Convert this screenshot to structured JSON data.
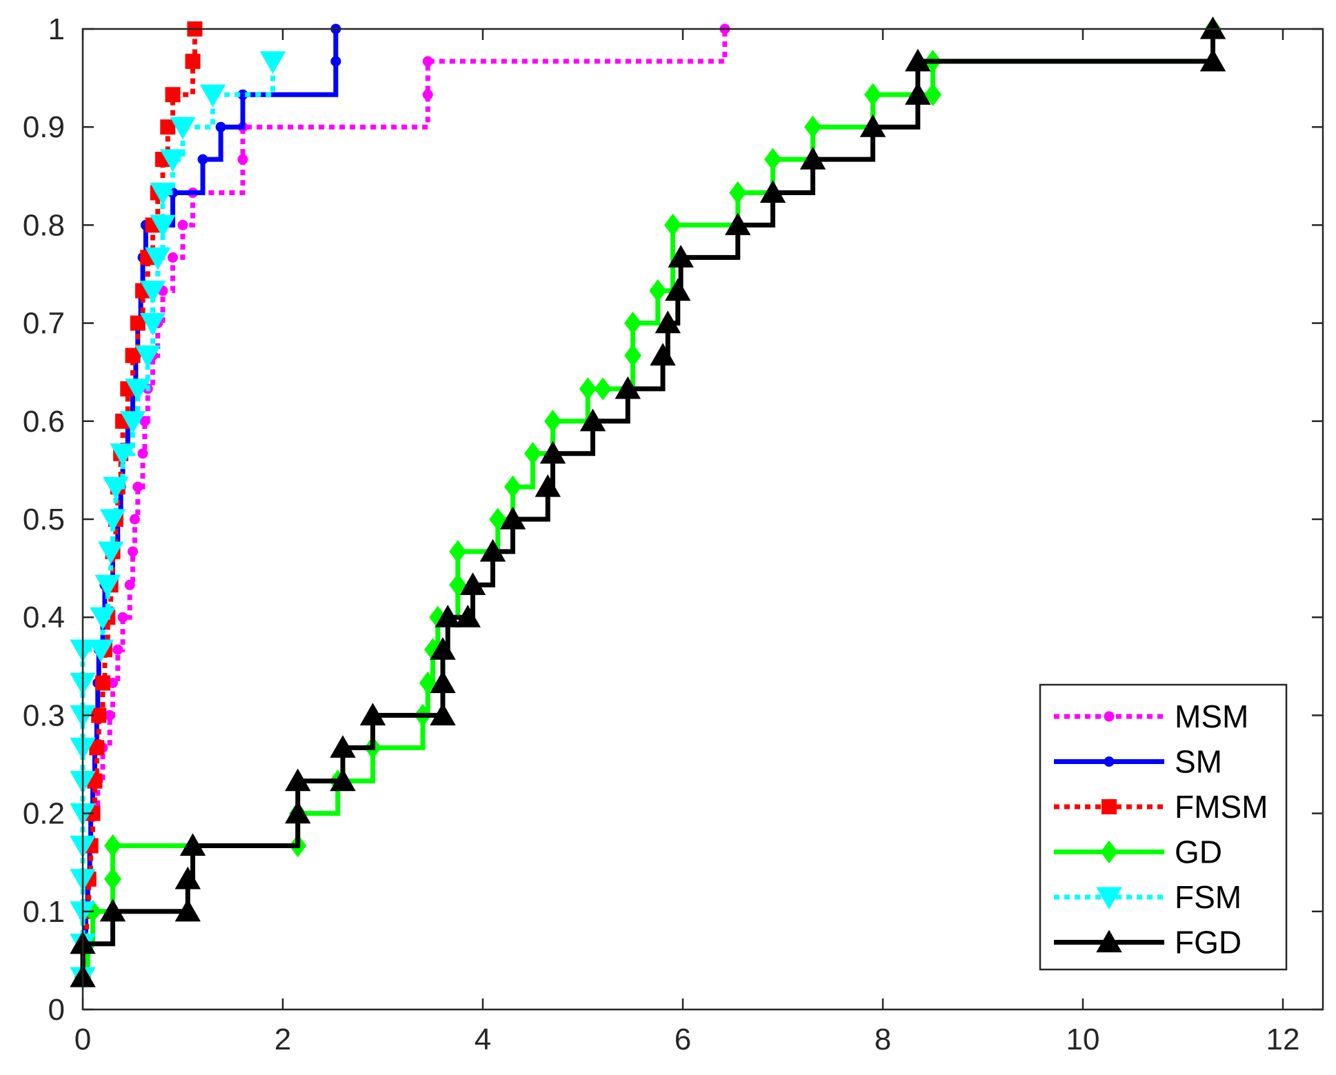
{
  "chart_data": {
    "type": "line",
    "step": true,
    "title": "",
    "xlabel": "",
    "ylabel": "",
    "xlim": [
      0,
      12.4
    ],
    "ylim": [
      0,
      1
    ],
    "xticks": [
      0,
      2,
      4,
      6,
      8,
      10,
      12
    ],
    "yticks": [
      0,
      0.1,
      0.2,
      0.3,
      0.4,
      0.5,
      0.6,
      0.7,
      0.8,
      0.9,
      1
    ],
    "xtick_labels": [
      "0",
      "2",
      "4",
      "6",
      "8",
      "10",
      "12"
    ],
    "ytick_labels": [
      "0",
      "0.1",
      "0.2",
      "0.3",
      "0.4",
      "0.5",
      "0.6",
      "0.7",
      "0.8",
      "0.9",
      "1"
    ],
    "grid": false,
    "legend_position": "bottom-right",
    "series": [
      {
        "name": "MSM",
        "color": "#ff00ff",
        "dash": "dotted",
        "marker": "dot",
        "x": [
          0.0,
          0.02,
          0.03,
          0.05,
          0.07,
          0.1,
          0.15,
          0.2,
          0.27,
          0.3,
          0.35,
          0.4,
          0.47,
          0.5,
          0.52,
          0.55,
          0.6,
          0.62,
          0.65,
          0.7,
          0.75,
          0.8,
          0.9,
          1.0,
          1.1,
          1.6,
          1.6,
          3.45,
          3.45,
          6.42
        ],
        "y": [
          0.033,
          0.067,
          0.1,
          0.133,
          0.167,
          0.2,
          0.233,
          0.267,
          0.3,
          0.333,
          0.367,
          0.4,
          0.433,
          0.467,
          0.5,
          0.533,
          0.567,
          0.6,
          0.633,
          0.667,
          0.7,
          0.733,
          0.767,
          0.8,
          0.833,
          0.867,
          0.9,
          0.933,
          0.967,
          1.0
        ]
      },
      {
        "name": "SM",
        "color": "#0000ff",
        "dash": "solid",
        "marker": "dot",
        "x": [
          0.0,
          0.02,
          0.03,
          0.05,
          0.07,
          0.08,
          0.1,
          0.12,
          0.14,
          0.15,
          0.16,
          0.2,
          0.22,
          0.3,
          0.35,
          0.38,
          0.4,
          0.45,
          0.5,
          0.53,
          0.55,
          0.58,
          0.6,
          0.63,
          0.9,
          1.2,
          1.38,
          1.6,
          2.53,
          2.53
        ],
        "y": [
          0.033,
          0.067,
          0.1,
          0.133,
          0.167,
          0.2,
          0.233,
          0.267,
          0.3,
          0.333,
          0.367,
          0.4,
          0.433,
          0.467,
          0.5,
          0.533,
          0.567,
          0.6,
          0.633,
          0.667,
          0.7,
          0.733,
          0.767,
          0.8,
          0.833,
          0.867,
          0.9,
          0.933,
          0.967,
          1.0
        ]
      },
      {
        "name": "FMSM",
        "color": "#ff0000",
        "dash": "dotted",
        "marker": "square",
        "x": [
          0.0,
          0.02,
          0.04,
          0.06,
          0.08,
          0.1,
          0.12,
          0.14,
          0.16,
          0.2,
          0.22,
          0.25,
          0.28,
          0.3,
          0.33,
          0.35,
          0.38,
          0.4,
          0.45,
          0.5,
          0.55,
          0.6,
          0.65,
          0.7,
          0.75,
          0.8,
          0.85,
          0.9,
          1.1,
          1.12
        ],
        "y": [
          0.033,
          0.067,
          0.1,
          0.133,
          0.167,
          0.2,
          0.233,
          0.267,
          0.3,
          0.333,
          0.367,
          0.4,
          0.433,
          0.467,
          0.5,
          0.533,
          0.567,
          0.6,
          0.633,
          0.667,
          0.7,
          0.733,
          0.767,
          0.8,
          0.833,
          0.867,
          0.9,
          0.933,
          0.967,
          1.0
        ]
      },
      {
        "name": "GD",
        "color": "#00ff00",
        "dash": "solid",
        "marker": "diamond",
        "x": [
          0.0,
          0.05,
          0.1,
          0.3,
          0.3,
          2.15,
          2.15,
          2.55,
          2.9,
          3.4,
          3.45,
          3.5,
          3.55,
          3.75,
          3.75,
          4.15,
          4.3,
          4.5,
          4.7,
          5.05,
          5.2,
          5.5,
          5.5,
          5.75,
          5.9,
          6.55,
          6.9,
          7.3,
          7.9,
          8.5,
          8.5,
          11.3
        ],
        "y": [
          0.033,
          0.067,
          0.1,
          0.133,
          0.167,
          0.167,
          0.2,
          0.233,
          0.267,
          0.3,
          0.333,
          0.367,
          0.4,
          0.433,
          0.467,
          0.5,
          0.533,
          0.567,
          0.6,
          0.633,
          0.633,
          0.667,
          0.7,
          0.733,
          0.8,
          0.833,
          0.867,
          0.9,
          0.933,
          0.933,
          0.967,
          1.0
        ]
      },
      {
        "name": "FSM",
        "color": "#00ffff",
        "dash": "dotted",
        "marker": "triangle-down",
        "x": [
          0.0,
          0.0,
          0.0,
          0.0,
          0.0,
          0.0,
          0.0,
          0.0,
          0.0,
          0.0,
          0.0,
          0.18,
          0.2,
          0.25,
          0.28,
          0.3,
          0.33,
          0.4,
          0.5,
          0.55,
          0.65,
          0.7,
          0.7,
          0.75,
          0.8,
          0.8,
          0.9,
          1.0,
          1.3,
          1.9
        ],
        "y": [
          0.033,
          0.067,
          0.1,
          0.133,
          0.167,
          0.2,
          0.233,
          0.267,
          0.3,
          0.333,
          0.367,
          0.367,
          0.4,
          0.433,
          0.467,
          0.5,
          0.533,
          0.567,
          0.6,
          0.633,
          0.667,
          0.7,
          0.733,
          0.767,
          0.8,
          0.833,
          0.867,
          0.9,
          0.933,
          0.967
        ]
      },
      {
        "name": "FGD",
        "color": "#000000",
        "dash": "solid",
        "marker": "triangle-up",
        "x": [
          0.0,
          0.0,
          0.3,
          1.05,
          1.05,
          1.1,
          2.15,
          2.15,
          2.6,
          2.6,
          2.9,
          3.6,
          3.6,
          3.6,
          3.65,
          3.85,
          3.9,
          4.1,
          4.3,
          4.65,
          4.7,
          5.1,
          5.45,
          5.8,
          5.85,
          5.95,
          5.98,
          6.55,
          6.9,
          7.3,
          7.9,
          8.35,
          8.35,
          11.3,
          11.3
        ],
        "y": [
          0.033,
          0.067,
          0.1,
          0.1,
          0.133,
          0.167,
          0.2,
          0.233,
          0.233,
          0.267,
          0.3,
          0.3,
          0.333,
          0.367,
          0.4,
          0.4,
          0.433,
          0.467,
          0.5,
          0.533,
          0.567,
          0.6,
          0.633,
          0.667,
          0.7,
          0.733,
          0.767,
          0.8,
          0.833,
          0.867,
          0.9,
          0.933,
          0.967,
          0.967,
          1.0
        ]
      }
    ]
  }
}
